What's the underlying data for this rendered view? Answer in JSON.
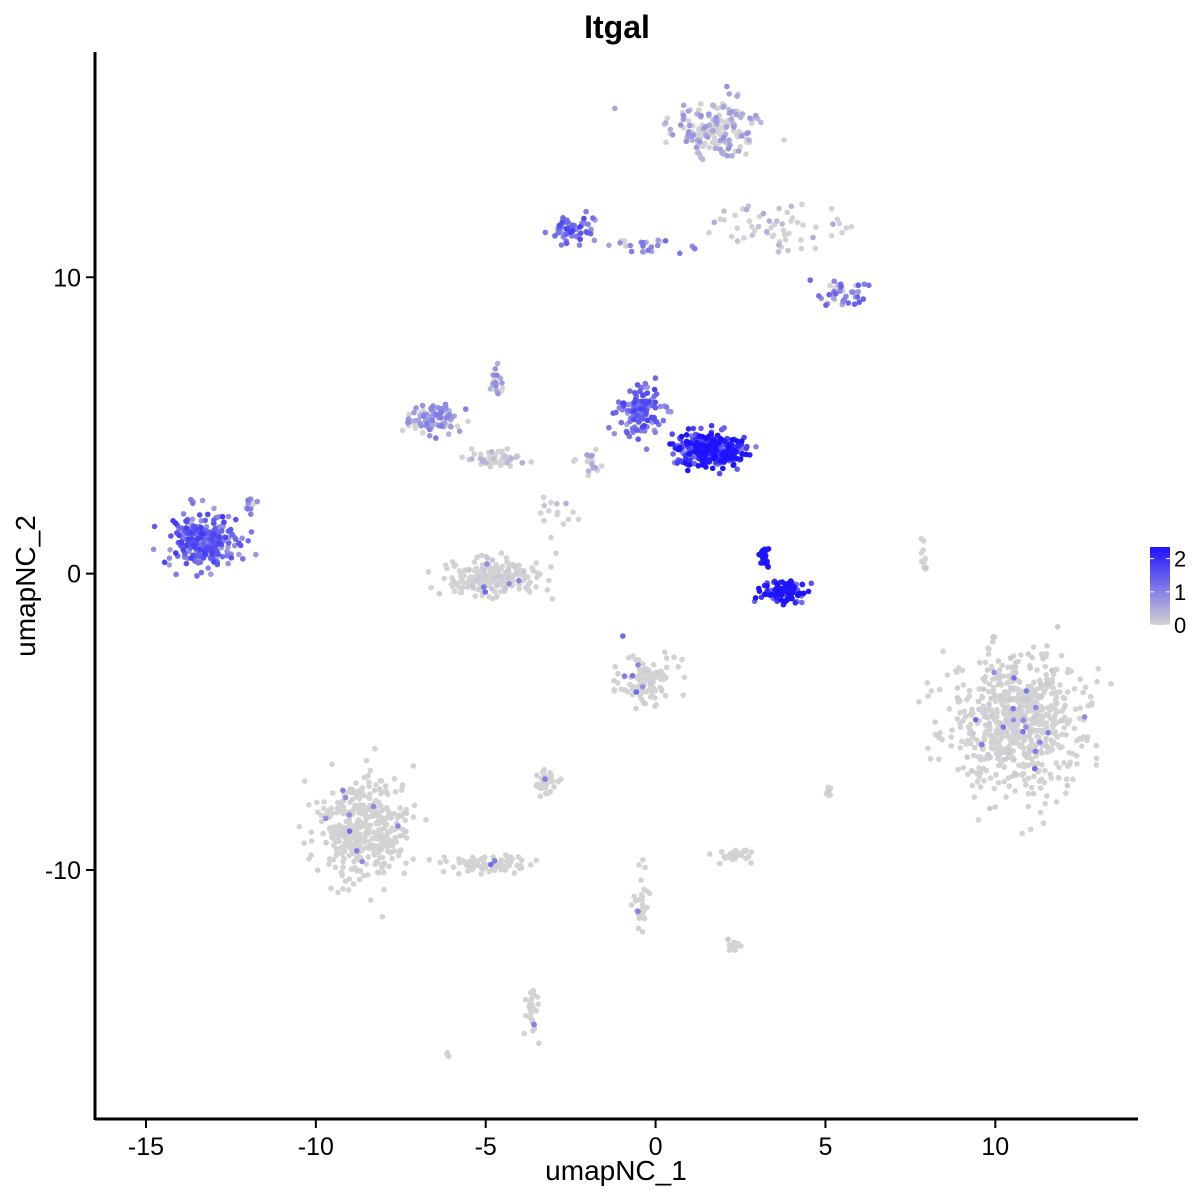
{
  "chart_data": {
    "type": "scatter",
    "title": "Itgal",
    "xlabel": "umapNC_1",
    "ylabel": "umapNC_2",
    "xlim": [
      -16.5,
      14.2
    ],
    "ylim": [
      -18.4,
      17.6
    ],
    "x_ticks": [
      -15,
      -10,
      -5,
      0,
      5,
      10
    ],
    "x_tick_labels": [
      "-15",
      "-10",
      "-5",
      "0",
      "5",
      "10"
    ],
    "y_ticks": [
      -10,
      0,
      10
    ],
    "y_tick_labels": [
      "-10",
      "0",
      "10"
    ],
    "grid": false,
    "point_color_low": "#D3D3D3",
    "point_color_high": "#1E13FF",
    "legend": {
      "placement": "right",
      "title": "",
      "labels": [
        "2",
        "1",
        "0"
      ],
      "range": [
        0,
        2.35
      ]
    },
    "clusters": [
      {
        "center": [
          1.8,
          15.0
        ],
        "spread": [
          1.3,
          0.9
        ],
        "n": 180,
        "expr": 0.55
      },
      {
        "center": [
          3.8,
          11.8
        ],
        "spread": [
          1.4,
          0.8
        ],
        "n": 60,
        "expr": 0.35
      },
      {
        "center": [
          5.5,
          9.5
        ],
        "spread": [
          0.6,
          0.5
        ],
        "n": 40,
        "expr": 1.0
      },
      {
        "center": [
          -2.5,
          11.6
        ],
        "spread": [
          0.6,
          0.4
        ],
        "n": 60,
        "expr": 1.2
      },
      {
        "center": [
          -0.5,
          11.1
        ],
        "spread": [
          1.4,
          0.25
        ],
        "n": 25,
        "expr": 0.9
      },
      {
        "center": [
          -13.3,
          1.1
        ],
        "spread": [
          0.9,
          0.8
        ],
        "n": 260,
        "expr": 1.25
      },
      {
        "center": [
          -6.5,
          5.2
        ],
        "spread": [
          0.8,
          0.5
        ],
        "n": 90,
        "expr": 0.75
      },
      {
        "center": [
          -4.8,
          3.9
        ],
        "spread": [
          1.0,
          0.3
        ],
        "n": 50,
        "expr": 0.3
      },
      {
        "center": [
          -4.7,
          -0.1
        ],
        "spread": [
          1.3,
          0.6
        ],
        "n": 200,
        "expr": 0.1
      },
      {
        "center": [
          -0.5,
          5.5
        ],
        "spread": [
          0.6,
          0.8
        ],
        "n": 130,
        "expr": 1.2
      },
      {
        "center": [
          1.6,
          4.2
        ],
        "spread": [
          1.0,
          0.5
        ],
        "n": 320,
        "expr": 1.9
      },
      {
        "center": [
          3.8,
          -0.6
        ],
        "spread": [
          0.6,
          0.35
        ],
        "n": 110,
        "expr": 2.0
      },
      {
        "center": [
          3.2,
          0.6
        ],
        "spread": [
          0.15,
          0.4
        ],
        "n": 30,
        "expr": 2.2
      },
      {
        "center": [
          10.6,
          -5.0
        ],
        "spread": [
          1.7,
          2.0
        ],
        "n": 700,
        "expr": 0.08
      },
      {
        "center": [
          -0.3,
          -3.6
        ],
        "spread": [
          0.8,
          0.8
        ],
        "n": 110,
        "expr": 0.06
      },
      {
        "center": [
          -8.6,
          -8.6
        ],
        "spread": [
          1.1,
          1.5
        ],
        "n": 420,
        "expr": 0.04
      },
      {
        "center": [
          -5.0,
          -9.8
        ],
        "spread": [
          1.2,
          0.3
        ],
        "n": 70,
        "expr": 0.02
      },
      {
        "center": [
          -3.2,
          -7.0
        ],
        "spread": [
          0.3,
          0.3
        ],
        "n": 35,
        "expr": 0.05
      },
      {
        "center": [
          2.4,
          -9.5
        ],
        "spread": [
          0.5,
          0.2
        ],
        "n": 35,
        "expr": 0.05
      },
      {
        "center": [
          -0.4,
          -11.0
        ],
        "spread": [
          0.2,
          0.9
        ],
        "n": 30,
        "expr": 0.02
      },
      {
        "center": [
          -3.6,
          -14.8
        ],
        "spread": [
          0.15,
          0.7
        ],
        "n": 30,
        "expr": 0.05
      },
      {
        "center": [
          2.3,
          -12.6
        ],
        "spread": [
          0.2,
          0.2
        ],
        "n": 12,
        "expr": 0.1
      },
      {
        "center": [
          7.9,
          0.5
        ],
        "spread": [
          0.1,
          0.5
        ],
        "n": 10,
        "expr": 0.1
      },
      {
        "center": [
          -4.7,
          6.5
        ],
        "spread": [
          0.2,
          0.5
        ],
        "n": 18,
        "expr": 0.7
      },
      {
        "center": [
          -3.1,
          2.1
        ],
        "spread": [
          0.6,
          0.6
        ],
        "n": 15,
        "expr": 0.3
      },
      {
        "center": [
          -1.9,
          3.8
        ],
        "spread": [
          0.3,
          0.4
        ],
        "n": 20,
        "expr": 0.5
      },
      {
        "center": [
          5.1,
          -7.3
        ],
        "spread": [
          0.1,
          0.2
        ],
        "n": 8,
        "expr": 0.1
      },
      {
        "center": [
          -12.0,
          2.2
        ],
        "spread": [
          0.2,
          0.4
        ],
        "n": 12,
        "expr": 0.8
      },
      {
        "center": [
          -6.1,
          -16.2
        ],
        "spread": [
          0.1,
          0.1
        ],
        "n": 4,
        "expr": 0.0
      }
    ]
  }
}
